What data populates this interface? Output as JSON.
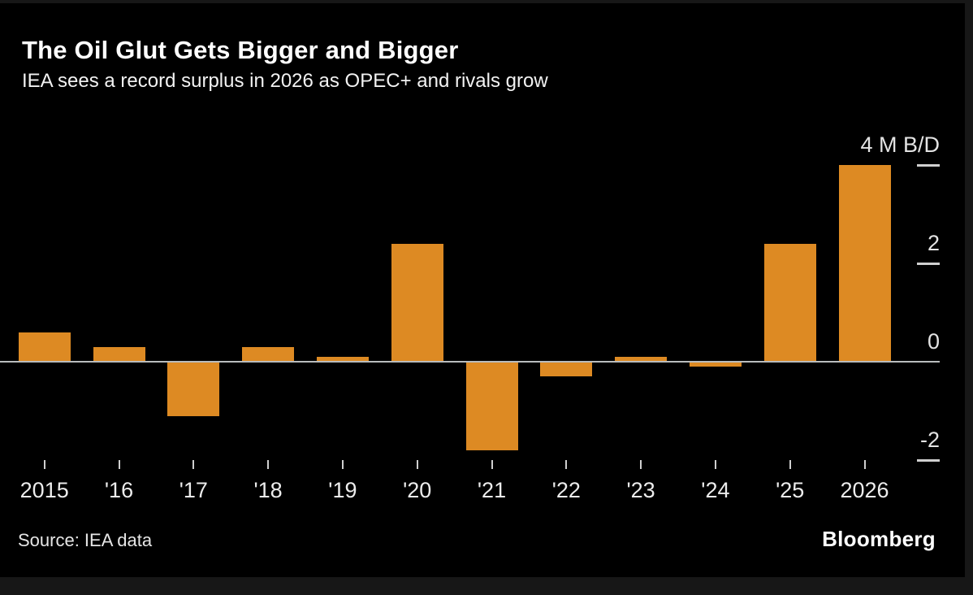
{
  "header": {
    "title": "The Oil Glut Gets Bigger and Bigger",
    "subtitle": "IEA sees a record surplus in 2026 as OPEC+ and rivals grow"
  },
  "footer": {
    "source": "Source: IEA data",
    "brand": "Bloomberg"
  },
  "colors": {
    "bar": "#dd8a23",
    "chart_background": "#000000",
    "page_background": "#171717",
    "axis_line": "#b9bcbd",
    "tick": "#cfcfcf",
    "label_text": "#e3e3e3"
  },
  "chart_data": {
    "type": "bar",
    "title": "The Oil Glut Gets Bigger and Bigger",
    "subtitle": "IEA sees a record surplus in 2026 as OPEC+ and rivals grow",
    "categories": [
      "2015",
      "'16",
      "'17",
      "'18",
      "'19",
      "'20",
      "'21",
      "'22",
      "'23",
      "'24",
      "'25",
      "2026"
    ],
    "values": [
      0.6,
      0.3,
      -1.1,
      0.3,
      0.1,
      2.4,
      -1.8,
      -0.3,
      0.1,
      -0.1,
      2.4,
      4.0
    ],
    "unit_label": "M B/D",
    "ylabel": "",
    "xlabel": "",
    "ylim": [
      -2.3,
      4.2
    ],
    "y_ticks": [
      -2,
      0,
      2,
      4
    ],
    "y_tick_labels": [
      "-2",
      "0",
      "2",
      "4 M B/D"
    ],
    "grid": false,
    "legend": false,
    "bar_color": "#dd8a23",
    "source": "Source: IEA data"
  }
}
